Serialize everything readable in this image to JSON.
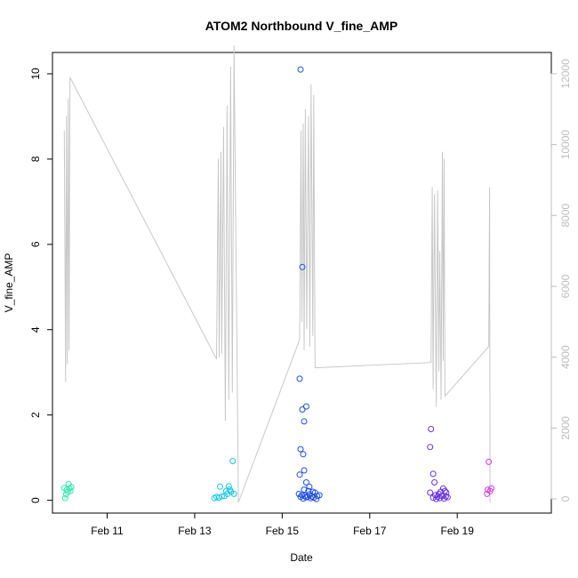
{
  "chart_data": {
    "type": "scatter",
    "title": "ATOM2 Northbound V_fine_AMP",
    "xlabel": "Date",
    "ylabel": "V_fine_AMP",
    "x_unit": "days since Feb 10",
    "xlim": [
      -0.25,
      11.15
    ],
    "ylim": [
      -0.3,
      10.5
    ],
    "y2lim": [
      -400,
      12600
    ],
    "x_ticks": [
      {
        "value": 1,
        "label": "Feb 11"
      },
      {
        "value": 3,
        "label": "Feb 13"
      },
      {
        "value": 5,
        "label": "Feb 15"
      },
      {
        "value": 7,
        "label": "Feb 17"
      },
      {
        "value": 9,
        "label": "Feb 19"
      }
    ],
    "y_ticks": [
      "0",
      "2",
      "4",
      "6",
      "8",
      "10"
    ],
    "y2_ticks": [
      "0",
      "2000",
      "4000",
      "6000",
      "8000",
      "10000",
      "12000"
    ],
    "colors": {
      "secondary_line": "#c8c8c8",
      "right_axis": "#bdbdbd"
    },
    "series": [
      {
        "color": "#2ee8b0",
        "points": [
          [
            0.02,
            0.29
          ],
          [
            0.04,
            0.05
          ],
          [
            0.06,
            0.14
          ],
          [
            0.08,
            0.25
          ],
          [
            0.1,
            0.2
          ],
          [
            0.12,
            0.38
          ],
          [
            0.14,
            0.28
          ],
          [
            0.16,
            0.22
          ],
          [
            0.18,
            0.31
          ]
        ]
      },
      {
        "color": "#12c6ea",
        "points": [
          [
            3.45,
            0.05
          ],
          [
            3.5,
            0.08
          ],
          [
            3.55,
            0.06
          ],
          [
            3.58,
            0.32
          ],
          [
            3.62,
            0.09
          ],
          [
            3.68,
            0.1
          ],
          [
            3.72,
            0.22
          ],
          [
            3.75,
            0.15
          ],
          [
            3.78,
            0.33
          ],
          [
            3.8,
            0.25
          ],
          [
            3.83,
            0.2
          ],
          [
            3.87,
            0.92
          ],
          [
            3.9,
            0.15
          ]
        ]
      },
      {
        "color": "#1f4fe8",
        "points": [
          [
            5.42,
            10.1
          ],
          [
            5.46,
            5.47
          ],
          [
            5.4,
            2.85
          ],
          [
            5.46,
            2.13
          ],
          [
            5.55,
            2.2
          ],
          [
            5.5,
            1.85
          ],
          [
            5.42,
            1.2
          ],
          [
            5.48,
            1.08
          ],
          [
            5.5,
            0.7
          ],
          [
            5.4,
            0.6
          ],
          [
            5.55,
            0.42
          ],
          [
            5.62,
            0.32
          ],
          [
            5.5,
            0.25
          ],
          [
            5.6,
            0.22
          ],
          [
            5.7,
            0.2
          ],
          [
            5.75,
            0.18
          ],
          [
            5.38,
            0.15
          ],
          [
            5.45,
            0.12
          ],
          [
            5.52,
            0.1
          ],
          [
            5.58,
            0.08
          ],
          [
            5.65,
            0.05
          ],
          [
            5.72,
            0.06
          ],
          [
            5.8,
            0.1
          ],
          [
            5.85,
            0.12
          ],
          [
            5.48,
            0.04
          ],
          [
            5.55,
            0.07
          ],
          [
            5.62,
            0.14
          ],
          [
            5.68,
            0.09
          ],
          [
            5.78,
            0.03
          ],
          [
            5.42,
            0.08
          ]
        ]
      },
      {
        "color": "#6a2ee8",
        "points": [
          [
            8.4,
            1.67
          ],
          [
            8.38,
            1.25
          ],
          [
            8.45,
            0.62
          ],
          [
            8.48,
            0.42
          ],
          [
            8.38,
            0.18
          ],
          [
            8.5,
            0.12
          ],
          [
            8.55,
            0.08
          ],
          [
            8.6,
            0.05
          ],
          [
            8.65,
            0.1
          ],
          [
            8.68,
            0.28
          ],
          [
            8.72,
            0.22
          ],
          [
            8.75,
            0.18
          ],
          [
            8.45,
            0.06
          ],
          [
            8.52,
            0.03
          ],
          [
            8.58,
            0.15
          ],
          [
            8.62,
            0.2
          ],
          [
            8.7,
            0.04
          ],
          [
            8.74,
            0.09
          ],
          [
            8.78,
            0.07
          ]
        ]
      },
      {
        "color": "#d93ae6",
        "points": [
          [
            9.72,
            0.9
          ],
          [
            9.68,
            0.15
          ],
          [
            9.7,
            0.25
          ],
          [
            9.75,
            0.22
          ],
          [
            9.78,
            0.28
          ]
        ]
      }
    ],
    "secondary_series": {
      "axis": "right",
      "values": [
        [
          0.02,
          10400
        ],
        [
          0.05,
          3300
        ],
        [
          0.07,
          10800
        ],
        [
          0.09,
          3800
        ],
        [
          0.11,
          11300
        ],
        [
          0.13,
          4200
        ],
        [
          0.15,
          11900
        ],
        [
          3.5,
          3950
        ],
        [
          3.54,
          9600
        ],
        [
          3.56,
          4000
        ],
        [
          3.6,
          9800
        ],
        [
          3.62,
          4100
        ],
        [
          3.66,
          10500
        ],
        [
          3.7,
          2200
        ],
        [
          3.74,
          11100
        ],
        [
          3.78,
          2800
        ],
        [
          3.82,
          12200
        ],
        [
          3.86,
          3000
        ],
        [
          3.9,
          12800
        ],
        [
          4.0,
          -100
        ],
        [
          5.4,
          4500
        ],
        [
          5.43,
          10400
        ],
        [
          5.45,
          5000
        ],
        [
          5.48,
          10600
        ],
        [
          5.5,
          4200
        ],
        [
          5.53,
          11000
        ],
        [
          5.56,
          4800
        ],
        [
          5.6,
          10800
        ],
        [
          5.63,
          4300
        ],
        [
          5.66,
          11700
        ],
        [
          5.7,
          4600
        ],
        [
          5.72,
          11400
        ],
        [
          5.75,
          3700
        ],
        [
          8.4,
          3850
        ],
        [
          8.43,
          8800
        ],
        [
          8.45,
          3100
        ],
        [
          8.48,
          8600
        ],
        [
          8.52,
          2600
        ],
        [
          8.55,
          8700
        ],
        [
          8.58,
          3600
        ],
        [
          8.6,
          7000
        ],
        [
          8.63,
          2800
        ],
        [
          8.66,
          9800
        ],
        [
          8.68,
          3900
        ],
        [
          8.7,
          9600
        ],
        [
          8.72,
          2900
        ],
        [
          9.72,
          4300
        ],
        [
          9.74,
          8800
        ],
        [
          9.75,
          -100
        ]
      ]
    }
  }
}
